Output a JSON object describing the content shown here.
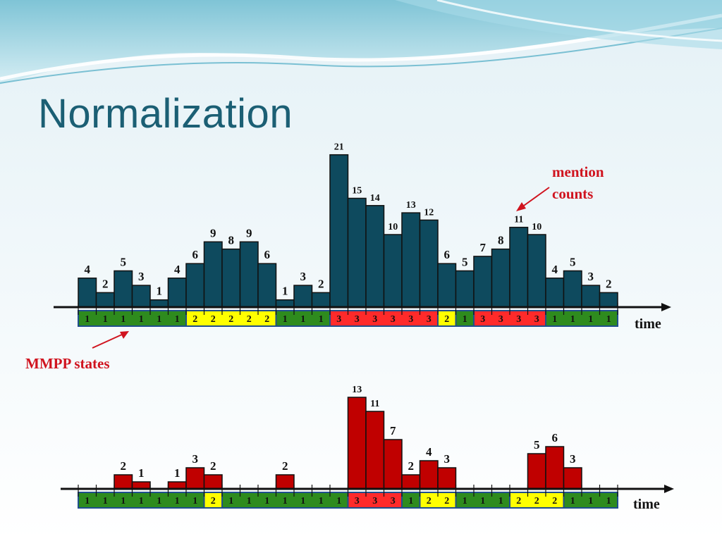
{
  "title": "Normalization",
  "annotations": {
    "mention_counts": [
      "mention",
      "counts"
    ],
    "mmpp_states": "MMPP states",
    "time_label": "time"
  },
  "colors": {
    "title": "#1b5f74",
    "bar_top": "#0e4a5e",
    "bar_bottom": "#c00000",
    "state_1": "#2e8b1e",
    "state_2": "#ffff00",
    "state_3": "#ff2a2a",
    "annotation": "#d0141f",
    "state_border": "#1f4e8c"
  },
  "top_chart": {
    "values": [
      4,
      2,
      5,
      3,
      1,
      4,
      6,
      9,
      8,
      9,
      6,
      1,
      3,
      2,
      21,
      15,
      14,
      10,
      13,
      12,
      6,
      5,
      7,
      8,
      11,
      10,
      4,
      5,
      3,
      2
    ],
    "states": [
      1,
      1,
      1,
      1,
      1,
      1,
      2,
      2,
      2,
      2,
      2,
      1,
      1,
      1,
      3,
      3,
      3,
      3,
      3,
      3,
      2,
      1,
      3,
      3,
      3,
      3,
      1,
      1,
      1,
      1
    ]
  },
  "bottom_chart": {
    "values": [
      0,
      0,
      2,
      1,
      0,
      1,
      3,
      2,
      0,
      0,
      0,
      2,
      0,
      0,
      0,
      13,
      11,
      7,
      2,
      4,
      3,
      0,
      0,
      0,
      0,
      5,
      6,
      3,
      0,
      0
    ],
    "states": [
      1,
      1,
      1,
      1,
      1,
      1,
      1,
      2,
      1,
      1,
      1,
      1,
      1,
      1,
      1,
      3,
      3,
      3,
      1,
      2,
      2,
      1,
      1,
      1,
      2,
      2,
      2,
      1,
      1,
      1
    ]
  }
}
